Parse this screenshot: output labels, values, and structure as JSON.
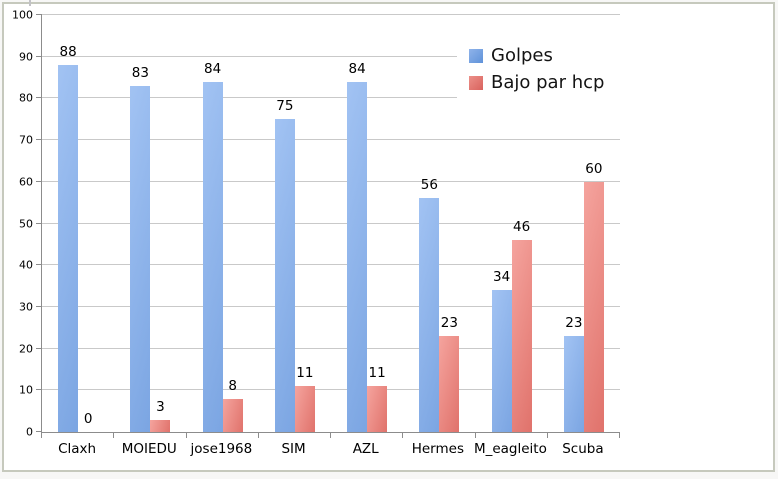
{
  "frame": {
    "border_color": "#c6c9bd",
    "background": "#ffffff"
  },
  "chart_data": {
    "type": "bar",
    "title": "",
    "xlabel": "",
    "ylabel": "",
    "categories": [
      "Claxh",
      "MOIEDU",
      "jose1968",
      "SIM",
      "AZL",
      "Hermes",
      "M_eagleito",
      "Scuba"
    ],
    "series": [
      {
        "name": "Golpes",
        "values": [
          88,
          83,
          84,
          75,
          84,
          56,
          34,
          23
        ],
        "color_light": "#A2C3F3",
        "color_dark": "#7BA5E2",
        "legend_color_light": "#8FB3EA",
        "legend_color_dark": "#5F92D9"
      },
      {
        "name": "Bajo par hcp",
        "values": [
          0,
          3,
          8,
          11,
          11,
          23,
          46,
          60
        ],
        "color_light": "#F5A49E",
        "color_dark": "#E0726B",
        "legend_color_light": "#EC9089",
        "legend_color_dark": "#D9625D"
      }
    ],
    "ylim": [
      0,
      100
    ],
    "ytick_step": 10,
    "grid": true,
    "gridline_color": "#c9c9c9",
    "axis_color": "#8c8c8c",
    "label_color": "#000000",
    "legend_position": "top-right"
  }
}
